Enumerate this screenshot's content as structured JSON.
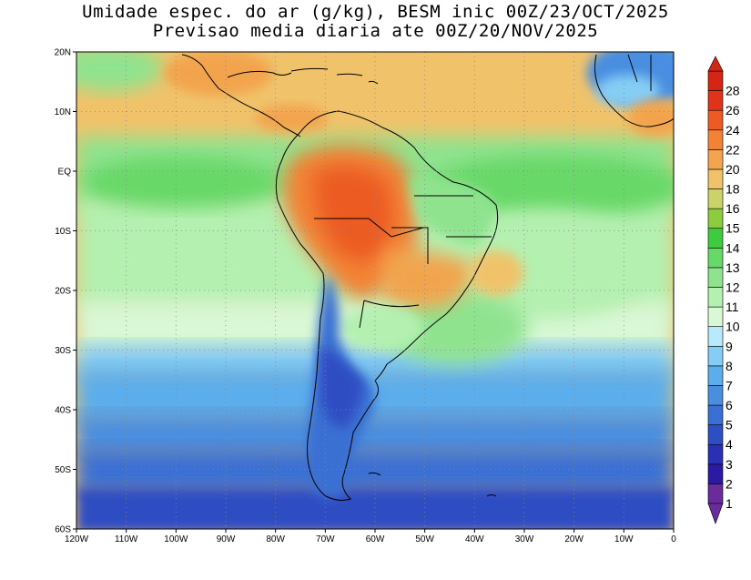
{
  "title": {
    "line1": "Umidade espec. do ar (g/kg), BESM inic 00Z/23/OCT/2025",
    "line2": "Previsao media diaria ate 00Z/20/NOV/2025"
  },
  "map": {
    "lon_range": [
      -120,
      0
    ],
    "lat_range": [
      -60,
      20
    ],
    "lon_ticks": [
      "120W",
      "110W",
      "100W",
      "90W",
      "80W",
      "70W",
      "60W",
      "50W",
      "40W",
      "30W",
      "20W",
      "10W",
      "0"
    ],
    "lat_ticks": [
      "20N",
      "10N",
      "EQ",
      "10S",
      "20S",
      "30S",
      "40S",
      "50S",
      "60S"
    ],
    "grid": "dotted"
  },
  "colorbar": {
    "levels": [
      "1",
      "2",
      "3",
      "4",
      "5",
      "6",
      "7",
      "8",
      "9",
      "10",
      "11",
      "12",
      "13",
      "14",
      "15",
      "16",
      "18",
      "20",
      "22",
      "24",
      "26",
      "28"
    ],
    "colors": [
      "#6a2c9c",
      "#2d1aa3",
      "#2a2fb3",
      "#2e4ec3",
      "#3a6fd3",
      "#4a8ee0",
      "#5cadec",
      "#86cdf5",
      "#b7ebfb",
      "#d8f8d6",
      "#b4f0b0",
      "#8fe38f",
      "#68d868",
      "#3fcb3f",
      "#8ccc3e",
      "#c9d36a",
      "#f0c36b",
      "#f2a44e",
      "#f28236",
      "#ec5b24",
      "#e0341a",
      "#d42515"
    ]
  }
}
